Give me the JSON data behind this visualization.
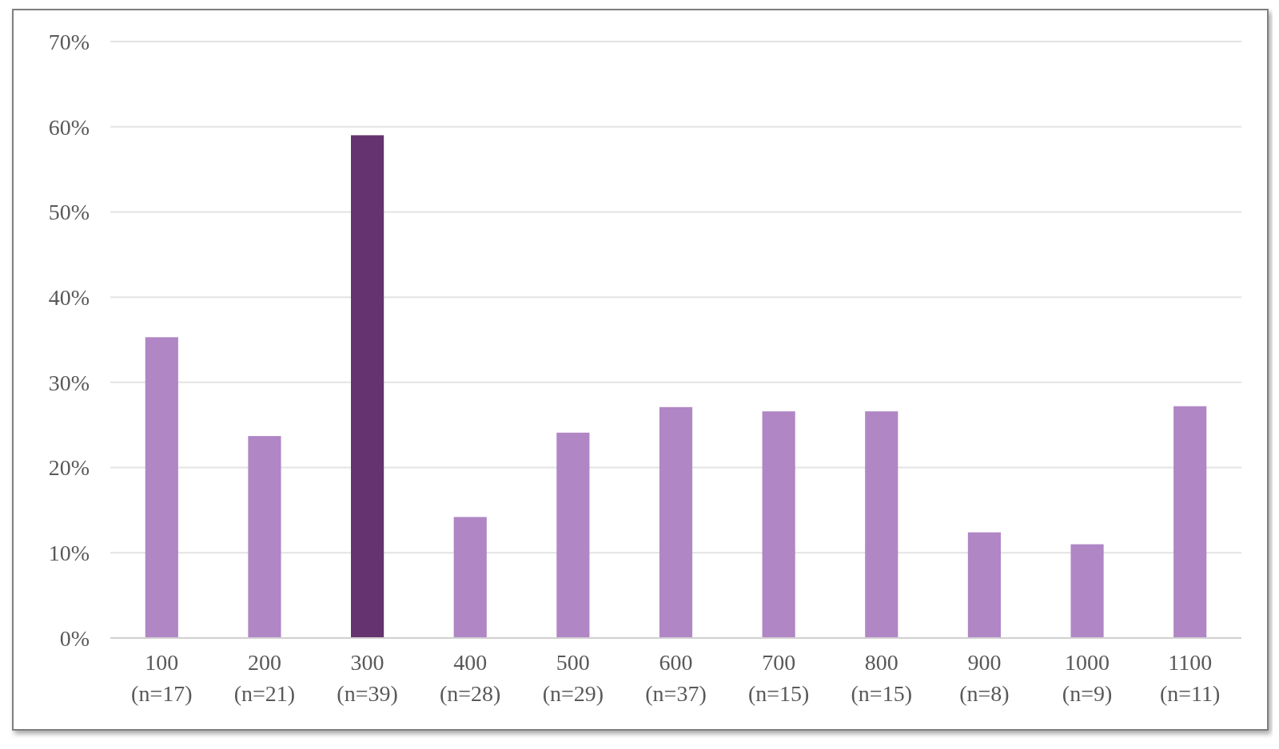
{
  "chart_data": {
    "type": "bar",
    "categories": [
      "100\n(n=17)",
      "200\n(n=21)",
      "300\n(n=39)",
      "400\n(n=28)",
      "500\n(n=29)",
      "600\n(n=37)",
      "700\n(n=15)",
      "800\n(n=15)",
      "900\n(n=8)",
      "1000\n(n=9)",
      "1100\n(n=11)"
    ],
    "values": [
      35.3,
      23.7,
      59.0,
      14.2,
      24.1,
      27.1,
      26.6,
      26.6,
      12.4,
      11.0,
      27.2
    ],
    "colors": [
      "#b086c5",
      "#b086c5",
      "#663371",
      "#b086c5",
      "#b086c5",
      "#b086c5",
      "#b086c5",
      "#b086c5",
      "#b086c5",
      "#b086c5",
      "#b086c5"
    ],
    "ylim": [
      0,
      70
    ],
    "yticks": [
      {
        "value": 0,
        "label": "0%"
      },
      {
        "value": 10,
        "label": "10%"
      },
      {
        "value": 20,
        "label": "20%"
      },
      {
        "value": 30,
        "label": "30%"
      },
      {
        "value": 40,
        "label": "40%"
      },
      {
        "value": 50,
        "label": "50%"
      },
      {
        "value": 60,
        "label": "60%"
      },
      {
        "value": 70,
        "label": "70%"
      }
    ],
    "grid": "y"
  }
}
